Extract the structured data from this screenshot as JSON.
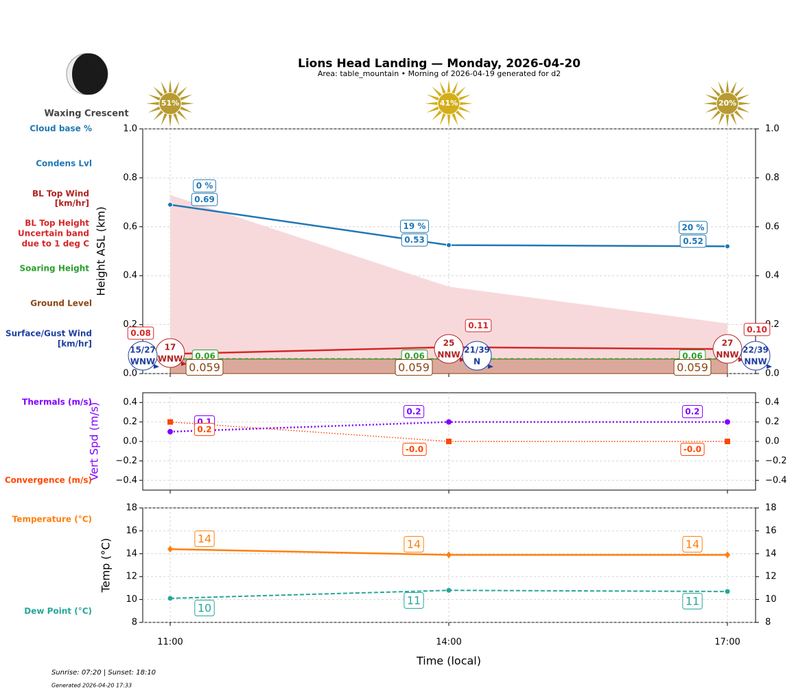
{
  "header": {
    "title": "Lions Head Landing — Monday, 2026-04-20",
    "subtitle": "Area: table_mountain • Morning of 2026-04-19 generated for d2",
    "moon_phase": "Waxing Crescent"
  },
  "sun": {
    "values": [
      51,
      41,
      20
    ],
    "value_labels": [
      "51%",
      "41%",
      "20%"
    ]
  },
  "row_labels": [
    {
      "lines": [
        "Cloud base %"
      ],
      "color": "#1f77b4"
    },
    {
      "lines": [
        "Condens Lvl"
      ],
      "color": "#1f77b4"
    },
    {
      "lines": [
        "BL Top Wind",
        "[km/hr]"
      ],
      "color": "#b22222"
    },
    {
      "lines": [
        "BL Top Height",
        "Uncertain band",
        "due to 1 deg C"
      ],
      "color": "#d62728"
    },
    {
      "lines": [
        "Soaring Height"
      ],
      "color": "#2ca02c"
    },
    {
      "lines": [
        "Ground Level"
      ],
      "color": "#8b4513"
    },
    {
      "lines": [
        "Surface/Gust Wind",
        "[km/hr]"
      ],
      "color": "#1f3fa0"
    },
    {
      "lines": [
        "Thermals (m/s)"
      ],
      "color": "#8000ff"
    },
    {
      "lines": [
        "Convergence (m/s)"
      ],
      "color": "#ff4500"
    },
    {
      "lines": [
        "Temperature (°C)"
      ],
      "color": "#ff7f0e"
    },
    {
      "lines": [
        "Dew Point (°C)"
      ],
      "color": "#26a69a"
    }
  ],
  "chart_data": [
    {
      "type": "line",
      "y_label": "Height ASL (km)",
      "ylim": [
        0,
        1
      ],
      "yticks": [
        {
          "value": 0,
          "label": "0.0"
        },
        0.2,
        0.4,
        0.6,
        0.8,
        {
          "value": 1,
          "label": "1.0"
        }
      ],
      "grid": true,
      "cloud_cover": {
        "color": "#1f77b4",
        "values": [
          0,
          19,
          20
        ],
        "value_labels": [
          "0 %",
          "19 %",
          "20 %"
        ]
      },
      "condensation_level": {
        "color": "#1f77b4",
        "values": [
          0.69,
          0.525,
          0.52
        ],
        "value_labels": [
          "0.69",
          "0.53",
          "0.52"
        ]
      },
      "bl_top_band": {
        "color": "#f8d9db",
        "values": [
          0.73,
          0.355,
          0.205
        ]
      },
      "bl_top_height": {
        "color": "#d62728",
        "values": [
          0.08,
          0.108,
          0.1
        ],
        "value_labels": [
          "0.08",
          "0.11",
          "0.10"
        ]
      },
      "soaring_height": {
        "color": "#2ca02c",
        "values": [
          0.06,
          0.06,
          0.06
        ],
        "value_labels": [
          "0.06",
          "0.06",
          "0.06"
        ]
      },
      "ground_level": {
        "color": "#8b4513",
        "values": [
          0.059,
          0.059,
          0.059
        ],
        "value_labels": [
          "0.059",
          "0.059",
          "0.059"
        ]
      },
      "bl_top_wind": {
        "color": "#b22222",
        "values": [
          17,
          25,
          27
        ],
        "directions": [
          "WNW",
          "NNW",
          "NNW"
        ]
      },
      "surface_wind": {
        "color": "#1f3fa0",
        "values": [
          15,
          21,
          22
        ],
        "gusts": [
          27,
          39,
          39
        ],
        "value_labels": [
          "15/27",
          "21/39",
          "22/39"
        ],
        "directions": [
          "WNW",
          "N",
          "NNW"
        ]
      }
    },
    {
      "type": "line",
      "y_label": "Vert Spd (m/s)",
      "y_label_color": "#8000ff",
      "ylim": [
        -0.5,
        0.5
      ],
      "yticks": [
        {
          "value": -0.4,
          "label": "−0.4"
        },
        {
          "value": -0.2,
          "label": "−0.2"
        },
        {
          "value": 0,
          "label": "0.0"
        },
        0.2,
        0.4
      ],
      "grid": true,
      "thermals": {
        "color": "#8000ff",
        "values": [
          0.1,
          0.2,
          0.2
        ],
        "value_labels": [
          "0.1",
          "0.2",
          "0.2"
        ]
      },
      "convergence": {
        "color": "#ff4500",
        "values": [
          0.2,
          0,
          0
        ],
        "value_labels": [
          "0.2",
          "-0.0",
          "-0.0"
        ]
      }
    },
    {
      "type": "line",
      "y_label": "Temp (°C)",
      "x_label": "Time (local)",
      "categories": [
        "11:00",
        "14:00",
        "17:00"
      ],
      "ylim": [
        8,
        18
      ],
      "yticks": [
        8,
        10,
        12,
        14,
        16,
        18
      ],
      "grid": true,
      "temperature": {
        "color": "#ff7f0e",
        "values": [
          14.4,
          13.9,
          13.9
        ],
        "value_labels": [
          "14",
          "14",
          "14"
        ]
      },
      "dew_point": {
        "color": "#26a69a",
        "values": [
          10.1,
          10.8,
          10.7
        ],
        "value_labels": [
          "10",
          "11",
          "11"
        ]
      }
    }
  ],
  "footer": {
    "sun_times": "Sunrise: 07:20 | Sunset: 18:10",
    "generated": "Generated 2026-04-20 17:33"
  }
}
